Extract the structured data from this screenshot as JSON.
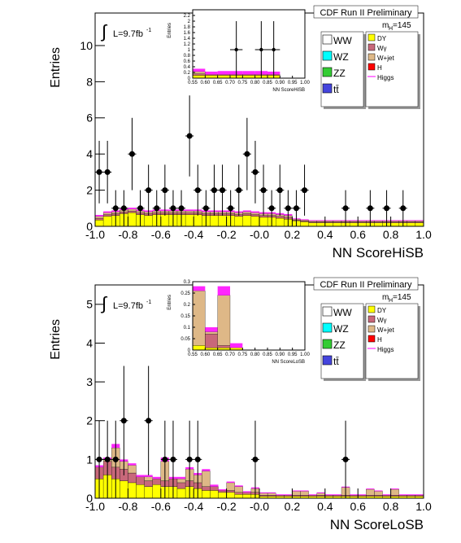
{
  "chart_data": [
    {
      "type": "histogram",
      "experiment": "CDF Run II Preliminary",
      "lumi": [
        "∫",
        "L=9.7fb",
        "-1"
      ],
      "mass": [
        "m",
        "H",
        "=145"
      ],
      "y_label": "Entries",
      "x_label": "NN ScoreHiSB",
      "bins": [
        -1,
        -0.95,
        -0.9,
        -0.85,
        -0.8,
        -0.75,
        -0.7,
        -0.65,
        -0.6,
        -0.55,
        -0.5,
        -0.45,
        -0.4,
        -0.35,
        -0.3,
        -0.25,
        -0.2,
        -0.15,
        -0.1,
        -0.05,
        0,
        0.05,
        0.1,
        0.15,
        0.2,
        0.25,
        0.3,
        0.35,
        0.4,
        0.45,
        0.5,
        0.55,
        0.6,
        0.65,
        0.7,
        0.75,
        0.8,
        0.85,
        0.9,
        0.95,
        1
      ],
      "xlim": [
        -1,
        1
      ],
      "ylim": [
        0,
        11.8
      ],
      "xticks": [
        {
          "value": -1,
          "label": "-1.0"
        },
        {
          "value": -0.8,
          "label": "-0.8"
        },
        {
          "value": -0.6,
          "label": "-0.6"
        },
        {
          "value": -0.4,
          "label": "-0.4"
        },
        {
          "value": -0.2,
          "label": "-0.2"
        },
        {
          "value": 0,
          "label": "-0.0"
        },
        {
          "value": 0.2,
          "label": "0.2"
        },
        {
          "value": 0.4,
          "label": "0.4"
        },
        {
          "value": 0.6,
          "label": "0.6"
        },
        {
          "value": 0.8,
          "label": "0.8"
        },
        {
          "value": 1,
          "label": "1.0"
        }
      ],
      "yticks": [
        0,
        2,
        4,
        6,
        8,
        10
      ],
      "series": [
        {
          "name": "DY",
          "color": "#ffff00",
          "values": [
            0.35,
            0.55,
            0.6,
            0.7,
            0.75,
            0.65,
            0.6,
            0.65,
            0.65,
            0.65,
            0.65,
            0.65,
            0.65,
            0.6,
            0.6,
            0.6,
            0.6,
            0.55,
            0.6,
            0.55,
            0.5,
            0.5,
            0.45,
            0.4,
            0.3,
            0.25,
            0.2,
            0.2,
            0.2,
            0.2,
            0.2,
            0.2,
            0.2,
            0.2,
            0.2,
            0.2,
            0.2,
            0.2,
            0.2,
            0.2
          ]
        },
        {
          "name": "Wγ",
          "color": "#c8687a",
          "values": [
            0.1,
            0.1,
            0.1,
            0.1,
            0.1,
            0.1,
            0.1,
            0.1,
            0.1,
            0.1,
            0.1,
            0.1,
            0.1,
            0.1,
            0.1,
            0.1,
            0.1,
            0.1,
            0.1,
            0.1,
            0.1,
            0.1,
            0.1,
            0.1,
            0.05,
            0.05,
            0.05,
            0.05,
            0.05,
            0.05,
            0.05,
            0.05,
            0.05,
            0.05,
            0.05,
            0.05,
            0.05,
            0.05,
            0.05,
            0.05
          ]
        },
        {
          "name": "W+jet",
          "color": "#deb887",
          "values": [
            0.1,
            0.1,
            0.1,
            0.1,
            0.1,
            0.1,
            0.1,
            0.1,
            0.1,
            0.1,
            0.1,
            0.1,
            0.1,
            0.1,
            0.1,
            0.1,
            0.1,
            0.1,
            0.1,
            0.1,
            0.1,
            0.1,
            0.1,
            0.1,
            0.05,
            0.05,
            0.05,
            0.05,
            0.05,
            0.05,
            0.05,
            0.05,
            0.05,
            0.05,
            0.05,
            0.05,
            0.05,
            0.05,
            0.05,
            0.05
          ]
        }
      ],
      "signal": {
        "name": "Higgs",
        "color": "#ff00ff",
        "values": [
          0.08,
          0.08,
          0.08,
          0.08,
          0.08,
          0.08,
          0.08,
          0.08,
          0.08,
          0.08,
          0.08,
          0.08,
          0.08,
          0.08,
          0.08,
          0.08,
          0.08,
          0.08,
          0.08,
          0.08,
          0.08,
          0.08,
          0.08,
          0.08,
          0.04,
          0.04,
          0.04,
          0.04,
          0.04,
          0.04,
          0.04,
          0.04,
          0.04,
          0.04,
          0.04,
          0.04,
          0.04,
          0.04,
          0.04,
          0.04
        ]
      },
      "legend_left": [
        {
          "name": "WW",
          "color": "#ffffff"
        },
        {
          "name": "WZ",
          "color": "#00ffff"
        },
        {
          "name": "ZZ",
          "color": "#33cc33"
        },
        {
          "name": "tt̄",
          "color": "#4444dd"
        }
      ],
      "legend_extra": [
        {
          "name": "H",
          "color": "#ff0000"
        }
      ],
      "points": {
        "x": [
          -0.975,
          -0.925,
          -0.875,
          -0.825,
          -0.775,
          -0.725,
          -0.675,
          -0.625,
          -0.575,
          -0.525,
          -0.475,
          -0.425,
          -0.375,
          -0.325,
          -0.275,
          -0.225,
          -0.175,
          -0.125,
          -0.075,
          -0.025,
          0.025,
          0.075,
          0.125,
          0.175,
          0.225,
          0.275,
          0.525,
          0.675,
          0.775,
          0.875
        ],
        "values": [
          3,
          3,
          1,
          1,
          4,
          1,
          2,
          1,
          2,
          1,
          1,
          5,
          2,
          1,
          2,
          2,
          1,
          2,
          4,
          3,
          2,
          1,
          2,
          1,
          1,
          2,
          1,
          1,
          1,
          1
        ],
        "errors": [
          1.73,
          1.73,
          1,
          1,
          2,
          1,
          1.41,
          1,
          1.41,
          1,
          1,
          2.24,
          1.41,
          1,
          1.41,
          1.41,
          1,
          1.41,
          2,
          1.73,
          1.41,
          1,
          1.41,
          1,
          1,
          1.41,
          1,
          1,
          1,
          1
        ]
      },
      "inset": {
        "y_label": "Entries",
        "x_label": "NN ScoreHiSB",
        "bins": [
          0.55,
          0.6,
          0.65,
          0.7,
          0.75,
          0.8,
          0.85,
          0.9,
          0.95,
          1
        ],
        "xlim": [
          0.55,
          1
        ],
        "ylim": [
          0,
          2.4
        ],
        "xticks": [
          {
            "value": 0.55,
            "label": "0.55"
          },
          {
            "value": 0.6,
            "label": "0.60"
          },
          {
            "value": 0.65,
            "label": "0.65"
          },
          {
            "value": 0.7,
            "label": "0.70"
          },
          {
            "value": 0.75,
            "label": "0.75"
          },
          {
            "value": 0.8,
            "label": "0.80"
          },
          {
            "value": 0.85,
            "label": "0.85"
          },
          {
            "value": 0.9,
            "label": "0.90"
          },
          {
            "value": 0.95,
            "label": "0.95"
          },
          {
            "value": 1,
            "label": "1.00"
          }
        ],
        "yticks": [
          0,
          0.2,
          0.4,
          0.6,
          0.8,
          1,
          1.2,
          1.4,
          1.6,
          1.8,
          2,
          2.2
        ],
        "series": [
          {
            "color": "#ffff00",
            "values": [
              0.1,
              0.1,
              0.1,
              0.1,
              0.1,
              0.1,
              0.1,
              0,
              0
            ]
          },
          {
            "color": "#c8687a",
            "values": [
              0.05,
              0.03,
              0.03,
              0.03,
              0.03,
              0.03,
              0.03,
              0,
              0
            ]
          },
          {
            "color": "#deb887",
            "values": [
              0.08,
              0,
              0,
              0,
              0,
              0,
              0,
              0,
              0
            ]
          }
        ],
        "signal": {
          "color": "#ff00ff",
          "values": [
            0.1,
            0.1,
            0.12,
            0.12,
            0.12,
            0.12,
            0.1,
            0,
            0
          ]
        },
        "points": {
          "x": [
            0.725,
            0.825,
            0.875
          ],
          "values": [
            1,
            1,
            1
          ],
          "errors": [
            1,
            1,
            1
          ]
        }
      }
    },
    {
      "type": "histogram",
      "experiment": "CDF Run II Preliminary",
      "lumi": [
        "∫",
        "L=9.7fb",
        "-1"
      ],
      "mass": [
        "m",
        "H",
        "=145"
      ],
      "y_label": "Entries",
      "x_label": "NN ScoreLoSB",
      "bins": [
        -1,
        -0.95,
        -0.9,
        -0.85,
        -0.8,
        -0.75,
        -0.7,
        -0.65,
        -0.6,
        -0.55,
        -0.5,
        -0.45,
        -0.4,
        -0.35,
        -0.3,
        -0.25,
        -0.2,
        -0.15,
        -0.1,
        -0.05,
        0,
        0.05,
        0.1,
        0.15,
        0.2,
        0.25,
        0.3,
        0.35,
        0.4,
        0.45,
        0.5,
        0.55,
        0.6,
        0.65,
        0.7,
        0.75,
        0.8,
        0.85,
        0.9,
        0.95,
        1
      ],
      "xlim": [
        -1,
        1
      ],
      "ylim": [
        0,
        5.5
      ],
      "xticks": [
        {
          "value": -1,
          "label": "-1.0"
        },
        {
          "value": -0.8,
          "label": "-0.8"
        },
        {
          "value": -0.6,
          "label": "-0.6"
        },
        {
          "value": -0.4,
          "label": "-0.4"
        },
        {
          "value": -0.2,
          "label": "-0.2"
        },
        {
          "value": 0,
          "label": "-0.0"
        },
        {
          "value": 0.2,
          "label": "0.2"
        },
        {
          "value": 0.4,
          "label": "0.4"
        },
        {
          "value": 0.6,
          "label": "0.6"
        },
        {
          "value": 0.8,
          "label": "0.8"
        },
        {
          "value": 1,
          "label": "1.0"
        }
      ],
      "yticks": [
        0,
        1,
        2,
        3,
        4,
        5
      ],
      "series": [
        {
          "name": "DY",
          "color": "#ffff00",
          "values": [
            0.5,
            0.6,
            0.5,
            0.45,
            0.4,
            0.35,
            0.3,
            0.35,
            0.3,
            0.3,
            0.25,
            0.3,
            0.25,
            0.2,
            0.2,
            0.15,
            0.15,
            0.1,
            0.1,
            0.1,
            0.05,
            0.05,
            0.05,
            0.05,
            0.05,
            0.05,
            0.05,
            0.05,
            0.05,
            0.05,
            0.05,
            0.05,
            0.05,
            0.05,
            0.05,
            0.05,
            0.05,
            0.05,
            0.05,
            0.05
          ]
        },
        {
          "name": "Wγ",
          "color": "#c8687a",
          "values": [
            0.3,
            0.35,
            0.3,
            0.3,
            0.25,
            0.2,
            0.15,
            0.15,
            0.15,
            0.2,
            0.15,
            0.15,
            0.15,
            0.1,
            0.1,
            0.05,
            0.05,
            0.05,
            0.05,
            0.05,
            0.03,
            0.03,
            0.03,
            0.03,
            0.03,
            0.03,
            0.03,
            0.03,
            0.03,
            0.03,
            0.03,
            0.03,
            0.03,
            0.03,
            0.03,
            0.03,
            0.03,
            0.03,
            0.03,
            0.03
          ]
        },
        {
          "name": "W+jet",
          "color": "#deb887",
          "values": [
            0,
            0.05,
            0.5,
            0.2,
            0.2,
            0,
            0.1,
            0,
            0.5,
            0,
            0.1,
            0.3,
            0.2,
            0.4,
            0,
            0,
            0.2,
            0.15,
            0,
            0.1,
            0.05,
            0.05,
            0,
            0,
            0.1,
            0.1,
            0,
            0.05,
            0,
            0,
            0.2,
            0,
            0,
            0.15,
            0.1,
            0,
            0.15,
            0,
            0,
            0
          ]
        }
      ],
      "signal": {
        "name": "Higgs",
        "color": "#ff00ff",
        "values": [
          0.05,
          0.05,
          0.1,
          0.05,
          0.05,
          0.05,
          0.05,
          0.05,
          0.1,
          0.05,
          0.05,
          0.05,
          0.05,
          0.05,
          0.05,
          0.03,
          0.03,
          0.03,
          0.03,
          0.03,
          0.02,
          0.02,
          0.02,
          0.02,
          0.02,
          0.02,
          0.02,
          0.02,
          0.02,
          0.02,
          0.02,
          0.02,
          0.02,
          0.02,
          0.02,
          0.02,
          0.02,
          0.02,
          0.02,
          0.02
        ]
      },
      "legend_left": [
        {
          "name": "WW",
          "color": "#ffffff"
        },
        {
          "name": "WZ",
          "color": "#00ffff"
        },
        {
          "name": "ZZ",
          "color": "#33cc33"
        },
        {
          "name": "tt̄",
          "color": "#4444dd"
        }
      ],
      "legend_extra": [
        {
          "name": "H",
          "color": "#ff0000"
        }
      ],
      "points": {
        "x": [
          -0.975,
          -0.925,
          -0.875,
          -0.825,
          -0.675,
          -0.575,
          -0.525,
          -0.425,
          -0.375,
          -0.025,
          0.525
        ],
        "values": [
          1,
          1,
          1,
          2,
          2,
          1,
          1,
          1,
          1,
          1,
          1
        ],
        "errors": [
          1,
          1,
          1,
          1.41,
          1.41,
          1,
          1,
          1,
          1,
          1,
          1
        ]
      },
      "inset": {
        "y_label": "Entries",
        "x_label": "NN ScoreLoSB",
        "bins": [
          0.55,
          0.6,
          0.65,
          0.7,
          0.75,
          0.8,
          0.85,
          0.9,
          0.95,
          1
        ],
        "xlim": [
          0.55,
          1
        ],
        "ylim": [
          0,
          0.3
        ],
        "xticks": [
          {
            "value": 0.55,
            "label": "0.55"
          },
          {
            "value": 0.6,
            "label": "0.60"
          },
          {
            "value": 0.65,
            "label": "0.65"
          },
          {
            "value": 0.7,
            "label": "0.70"
          },
          {
            "value": 0.75,
            "label": "0.75"
          },
          {
            "value": 0.8,
            "label": "0.80"
          },
          {
            "value": 0.85,
            "label": "0.85"
          },
          {
            "value": 0.9,
            "label": "0.90"
          },
          {
            "value": 0.95,
            "label": "0.95"
          },
          {
            "value": 1,
            "label": "1.00"
          }
        ],
        "yticks": [
          0,
          0.05,
          0.1,
          0.15,
          0.2,
          0.25,
          0.3
        ],
        "series": [
          {
            "color": "#ffff00",
            "values": [
              0.02,
              0.01,
              0.01,
              0.01,
              0,
              0,
              0,
              0,
              0
            ]
          },
          {
            "color": "#c8687a",
            "values": [
              0,
              0.06,
              0.01,
              0,
              0,
              0,
              0,
              0,
              0
            ]
          },
          {
            "color": "#deb887",
            "values": [
              0.24,
              0.01,
              0.22,
              0,
              0,
              0,
              0,
              0,
              0
            ]
          }
        ],
        "signal": {
          "color": "#ff00ff",
          "values": [
            0.02,
            0.02,
            0.04,
            0.02,
            0,
            0,
            0,
            0,
            0
          ]
        },
        "points": {
          "x": [],
          "values": [],
          "errors": []
        }
      }
    }
  ]
}
